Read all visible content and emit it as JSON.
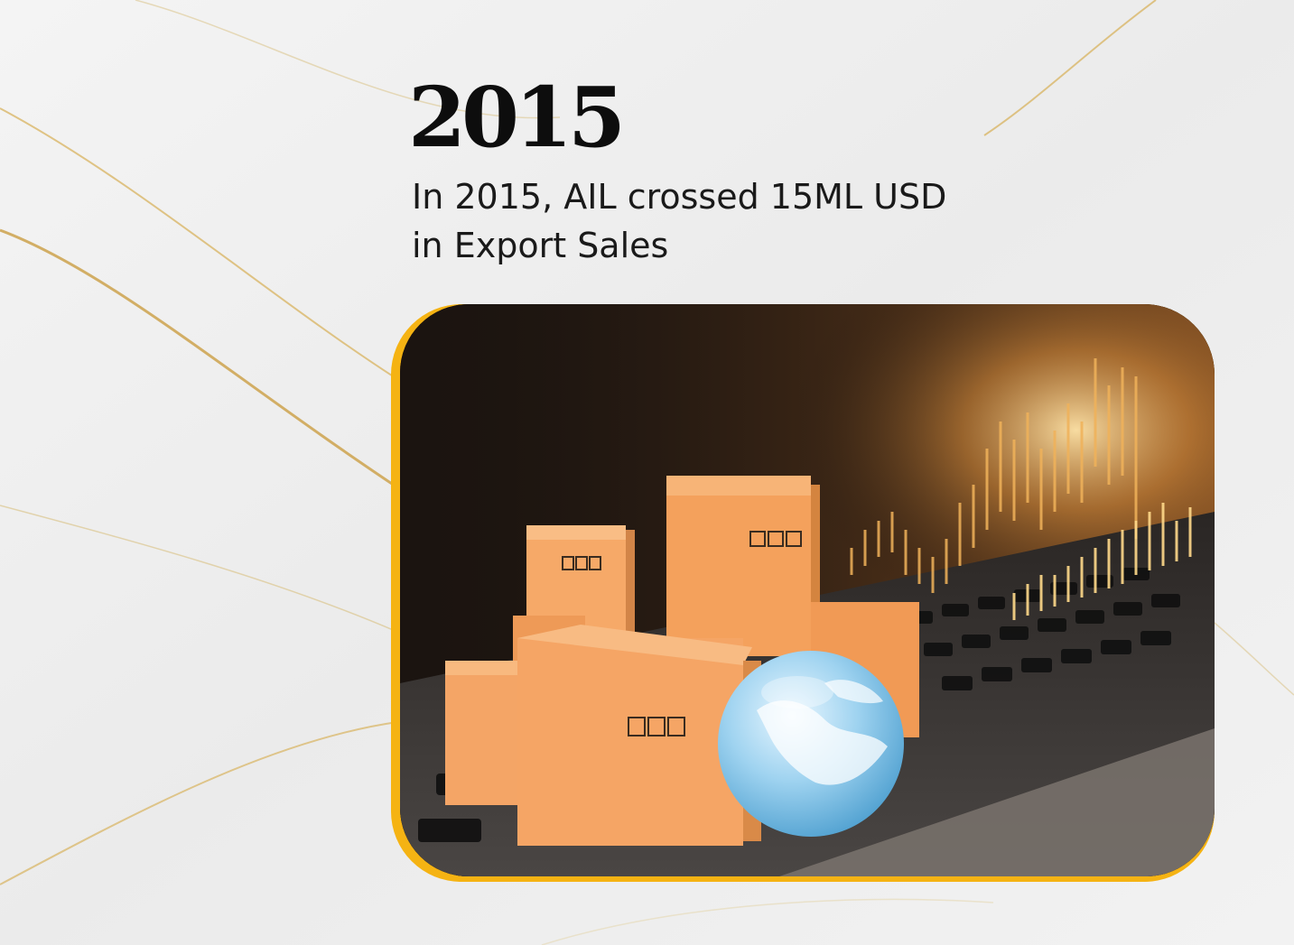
{
  "milestone": {
    "year": "2015",
    "description_lines": [
      "In 2015, AIL crossed 15ML USD",
      "in Export Sales"
    ]
  },
  "image": {
    "subject": "cardboard-boxes-globe-laptop-chart-photo"
  },
  "colors": {
    "background": "#efefef",
    "accent_gold": "#f5b313",
    "text": "#0d0d0d",
    "box_orange": "#f4a15c"
  }
}
